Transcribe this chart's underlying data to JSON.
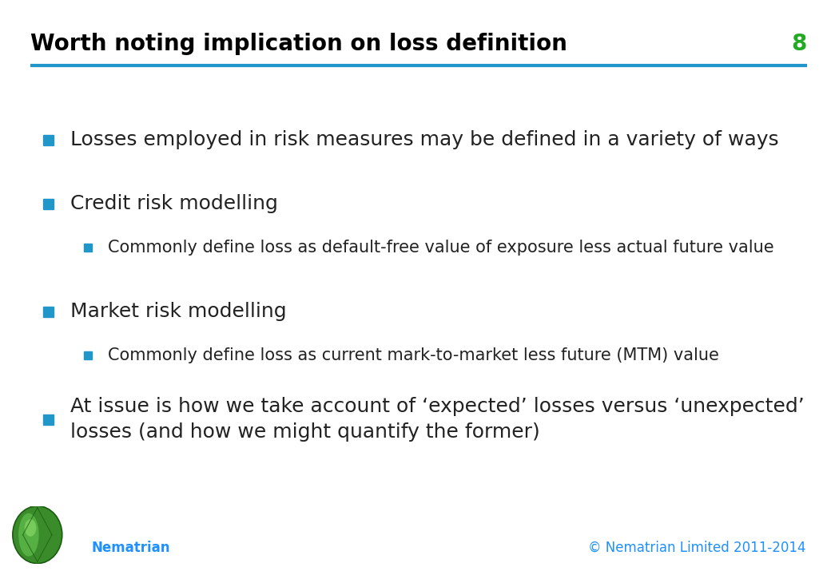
{
  "title": "Worth noting implication on loss definition",
  "slide_number": "8",
  "title_color": "#000000",
  "title_fontsize": 20,
  "slide_number_color": "#22AA22",
  "header_line_color": "#2196C8",
  "background_color": "#FFFFFF",
  "bullet_color": "#2196C8",
  "footer_left": "Nematrian",
  "footer_right": "© Nematrian Limited 2011-2014",
  "footer_color": "#1E90FF",
  "bullets": [
    {
      "level": 0,
      "text": "Losses employed in risk measures may be defined in a variety of ways"
    },
    {
      "level": 0,
      "text": "Credit risk modelling"
    },
    {
      "level": 1,
      "text": "Commonly define loss as default-free value of exposure less actual future value"
    },
    {
      "level": 0,
      "text": "Market risk modelling"
    },
    {
      "level": 1,
      "text": "Commonly define loss as current mark-to-market less future (MTM) value"
    },
    {
      "level": 0,
      "text": "At issue is how we take account of ‘expected’ losses versus ‘unexpected’\nlosses (and how we might quantify the former)"
    }
  ],
  "bullet_fontsize_l0": 18,
  "bullet_fontsize_l1": 15,
  "bullet_sq_l0": 9,
  "bullet_sq_l1": 7
}
